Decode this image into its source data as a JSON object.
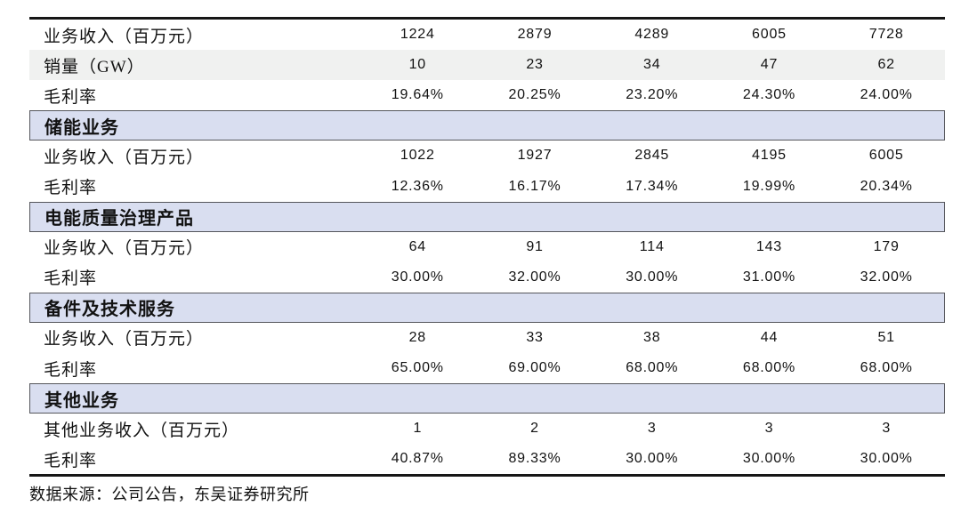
{
  "table": {
    "value_columns_count": 5,
    "rows": [
      {
        "type": "data",
        "shaded": false,
        "label": "业务收入（百万元）",
        "values": [
          "1224",
          "2879",
          "4289",
          "6005",
          "7728"
        ]
      },
      {
        "type": "data",
        "shaded": true,
        "label": "销量（GW）",
        "values": [
          "10",
          "23",
          "34",
          "47",
          "62"
        ]
      },
      {
        "type": "data",
        "shaded": false,
        "label": "毛利率",
        "values": [
          "19.64%",
          "20.25%",
          "23.20%",
          "24.30%",
          "24.00%"
        ]
      },
      {
        "type": "section",
        "label": "储能业务"
      },
      {
        "type": "data",
        "shaded": false,
        "label": "业务收入（百万元）",
        "values": [
          "1022",
          "1927",
          "2845",
          "4195",
          "6005"
        ]
      },
      {
        "type": "data",
        "shaded": false,
        "label": "毛利率",
        "values": [
          "12.36%",
          "16.17%",
          "17.34%",
          "19.99%",
          "20.34%"
        ]
      },
      {
        "type": "section",
        "label": "电能质量治理产品"
      },
      {
        "type": "data",
        "shaded": false,
        "label": "业务收入（百万元）",
        "values": [
          "64",
          "91",
          "114",
          "143",
          "179"
        ]
      },
      {
        "type": "data",
        "shaded": false,
        "label": "毛利率",
        "values": [
          "30.00%",
          "32.00%",
          "30.00%",
          "31.00%",
          "32.00%"
        ]
      },
      {
        "type": "section",
        "label": "备件及技术服务"
      },
      {
        "type": "data",
        "shaded": false,
        "label": "业务收入（百万元）",
        "values": [
          "28",
          "33",
          "38",
          "44",
          "51"
        ]
      },
      {
        "type": "data",
        "shaded": false,
        "label": "毛利率",
        "values": [
          "65.00%",
          "69.00%",
          "68.00%",
          "68.00%",
          "68.00%"
        ]
      },
      {
        "type": "section",
        "label": "其他业务"
      },
      {
        "type": "data",
        "shaded": false,
        "label": "其他业务收入（百万元）",
        "values": [
          "1",
          "2",
          "3",
          "3",
          "3"
        ]
      },
      {
        "type": "data",
        "shaded": false,
        "label": "毛利率",
        "values": [
          "40.87%",
          "89.33%",
          "30.00%",
          "30.00%",
          "30.00%"
        ]
      }
    ]
  },
  "footer": {
    "source_text": "数据来源：公司公告，东吴证券研究所"
  },
  "colors": {
    "section_band": "#d9def0",
    "shaded_row": "#f0f1f0",
    "heavy_border": "#161616",
    "section_border": "#55565c",
    "text": "#121212"
  }
}
